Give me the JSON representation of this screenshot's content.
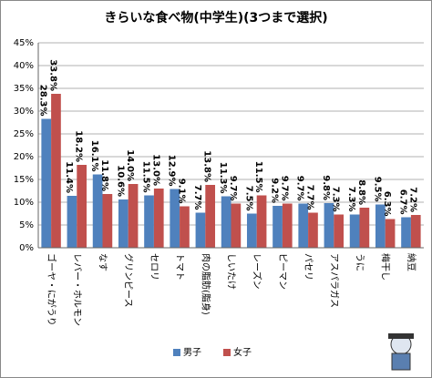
{
  "chart_data": {
    "type": "bar",
    "title": "きらいな食べ物(中学生)(3つまで選択)",
    "categories": [
      "ゴーヤ・にがうり",
      "レバー・ホルモン",
      "なす",
      "グリンピース",
      "セロリ",
      "トマト",
      "肉の脂肪(脂身)",
      "しいたけ",
      "レーズン",
      "ピーマン",
      "パセリ",
      "アスパラガス",
      "うに",
      "梅干し",
      "納豆"
    ],
    "series": [
      {
        "name": "男子",
        "color": "#4f81bd",
        "values": [
          28.3,
          11.4,
          16.1,
          10.6,
          11.5,
          12.9,
          7.7,
          11.3,
          7.5,
          9.2,
          9.7,
          9.8,
          7.3,
          9.5,
          6.7
        ],
        "value_labels": [
          "28.3%",
          "11.4%",
          "16.1%",
          "10.6%",
          "11.5%",
          "12.9%",
          "7.7%",
          "11.3%",
          "7.5%",
          "9.2%",
          "9.7%",
          "9.8%",
          "7.3%",
          "9.5%",
          "6.7%"
        ]
      },
      {
        "name": "女子",
        "color": "#c0504d",
        "values": [
          33.8,
          18.2,
          11.8,
          14.0,
          13.0,
          9.1,
          13.8,
          9.7,
          11.5,
          9.7,
          7.7,
          7.3,
          8.8,
          6.3,
          7.2
        ],
        "value_labels": [
          "33.8%",
          "18.2%",
          "11.8%",
          "14.0%",
          "13.0%",
          "9.1%",
          "13.8%",
          "9.7%",
          "11.5%",
          "9.7%",
          "7.7%",
          "7.3%",
          "8.8%",
          "6.3%",
          "7.2%"
        ]
      }
    ],
    "ylim": [
      0,
      45
    ],
    "yticks": [
      {
        "value": 0,
        "label": "0%"
      },
      {
        "value": 5,
        "label": "5%"
      },
      {
        "value": 10,
        "label": "10%"
      },
      {
        "value": 15,
        "label": "15%"
      },
      {
        "value": 20,
        "label": "20%"
      },
      {
        "value": 25,
        "label": "25%"
      },
      {
        "value": 30,
        "label": "30%"
      },
      {
        "value": 35,
        "label": "35%"
      },
      {
        "value": 40,
        "label": "40%"
      },
      {
        "value": 45,
        "label": "45%"
      }
    ],
    "grid": true
  }
}
